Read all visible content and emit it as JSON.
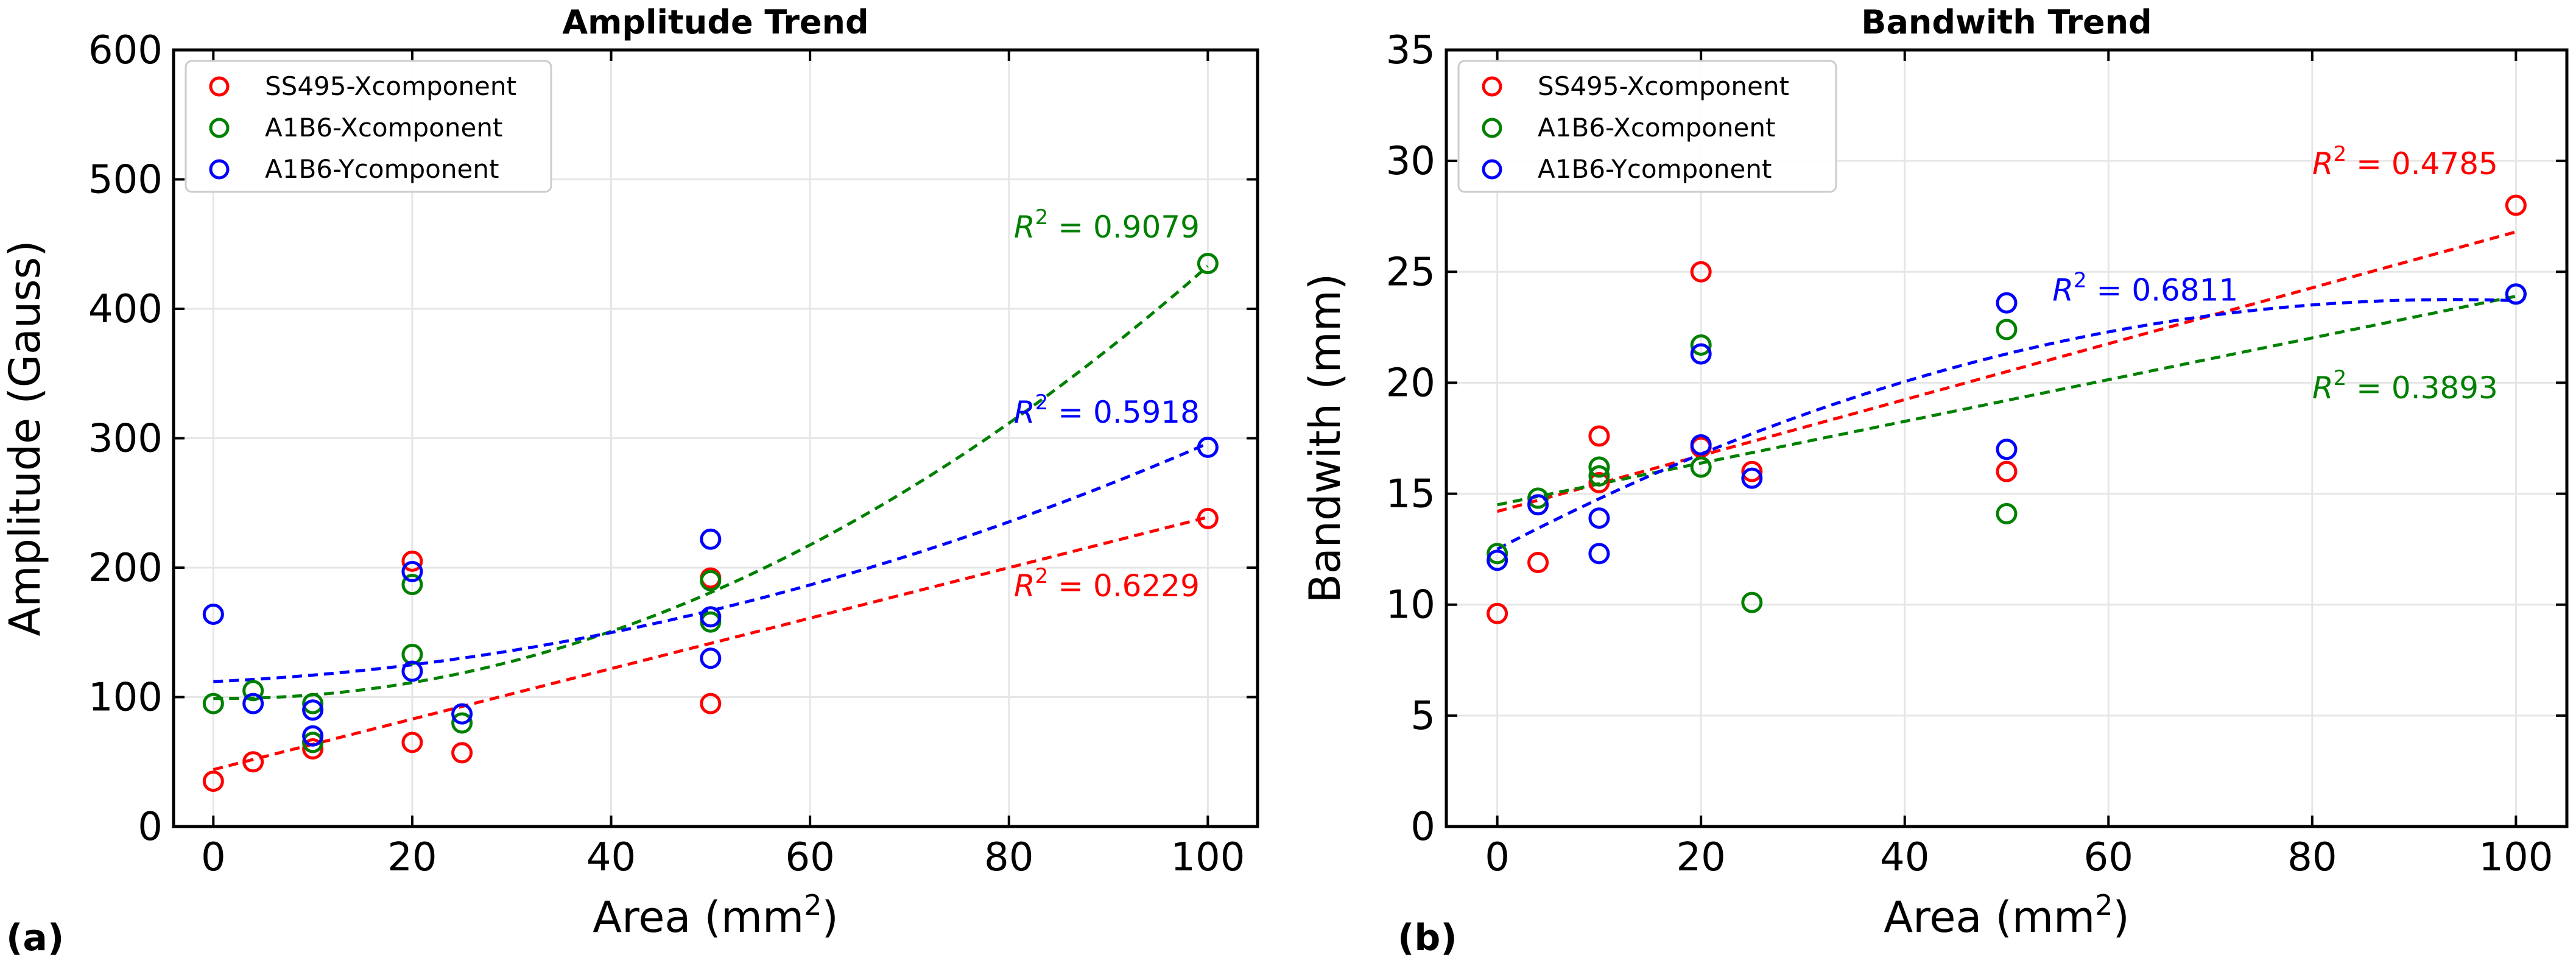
{
  "chart_data": [
    {
      "type": "scatter",
      "panel_label": "(a)",
      "title": "Amplitude Trend",
      "xlabel": "Area (mm",
      "xlabel_sup": "2",
      "xlabel_end": ")",
      "ylabel": "Amplitude (Gauss)",
      "xlim": [
        -4,
        105
      ],
      "ylim": [
        0,
        600
      ],
      "xticks": [
        0,
        20,
        40,
        60,
        80,
        100
      ],
      "yticks": [
        0,
        100,
        200,
        300,
        400,
        500,
        600
      ],
      "grid": true,
      "legend_position": "top-left",
      "series": [
        {
          "name": "SS495-Xcomponent",
          "color": "#ff0000",
          "points": [
            [
              0,
              35
            ],
            [
              4,
              50
            ],
            [
              10,
              60
            ],
            [
              10,
              65
            ],
            [
              20,
              205
            ],
            [
              20,
              65
            ],
            [
              25,
              57
            ],
            [
              50,
              192
            ],
            [
              50,
              95
            ],
            [
              100,
              238
            ]
          ],
          "fit": {
            "type": "linear",
            "coeffs": [
              44,
              1.95
            ]
          },
          "r2_base": "R",
          "r2_sup": "2",
          "r2_value": " = 0.6229",
          "r2_anchor": [
            80.5,
            178
          ]
        },
        {
          "name": "A1B6-Xcomponent",
          "color": "#008000",
          "points": [
            [
              0,
              95
            ],
            [
              4,
              105
            ],
            [
              10,
              95
            ],
            [
              10,
              65
            ],
            [
              20,
              187
            ],
            [
              20,
              133
            ],
            [
              25,
              80
            ],
            [
              50,
              190
            ],
            [
              50,
              158
            ],
            [
              100,
              435
            ]
          ],
          "fit": {
            "type": "poly2",
            "coeffs": [
              99,
              -0.07,
              0.0341
            ]
          },
          "r2_base": "R",
          "r2_sup": "2",
          "r2_value": " = 0.9079",
          "r2_anchor": [
            80.5,
            455
          ]
        },
        {
          "name": "A1B6-Ycomponent",
          "color": "#0000ff",
          "points": [
            [
              0,
              164
            ],
            [
              4,
              95
            ],
            [
              10,
              90
            ],
            [
              10,
              70
            ],
            [
              20,
              197
            ],
            [
              20,
              120
            ],
            [
              25,
              87
            ],
            [
              50,
              222
            ],
            [
              50,
              162
            ],
            [
              50,
              130
            ],
            [
              100,
              293
            ]
          ],
          "fit": {
            "type": "poly2",
            "coeffs": [
              112,
              0.35,
              0.0149
            ]
          },
          "r2_base": "R",
          "r2_sup": "2",
          "r2_value": " = 0.5918",
          "r2_anchor": [
            80.5,
            312
          ]
        }
      ]
    },
    {
      "type": "scatter",
      "panel_label": "(b)",
      "title": "Bandwith Trend",
      "xlabel": "Area (mm",
      "xlabel_sup": "2",
      "xlabel_end": ")",
      "ylabel": "Bandwith (mm)",
      "xlim": [
        -5,
        105
      ],
      "ylim": [
        0,
        35
      ],
      "xticks": [
        0,
        20,
        40,
        60,
        80,
        100
      ],
      "yticks": [
        0,
        5,
        10,
        15,
        20,
        25,
        30,
        35
      ],
      "grid": true,
      "legend_position": "top-left",
      "series": [
        {
          "name": "SS495-Xcomponent",
          "color": "#ff0000",
          "points": [
            [
              0,
              9.6
            ],
            [
              4,
              11.9
            ],
            [
              10,
              17.6
            ],
            [
              10,
              15.5
            ],
            [
              20,
              25.0
            ],
            [
              20,
              17.1
            ],
            [
              25,
              16.0
            ],
            [
              50,
              16.0
            ],
            [
              100,
              28.0
            ]
          ],
          "fit": {
            "type": "linear",
            "coeffs": [
              14.2,
              0.126
            ]
          },
          "r2_base": "R",
          "r2_sup": "2",
          "r2_value": " = 0.4785",
          "r2_anchor": [
            80,
            29.4
          ]
        },
        {
          "name": "A1B6-Xcomponent",
          "color": "#008000",
          "points": [
            [
              0,
              12.3
            ],
            [
              4,
              14.8
            ],
            [
              10,
              16.2
            ],
            [
              10,
              15.8
            ],
            [
              20,
              21.7
            ],
            [
              20,
              16.2
            ],
            [
              25,
              10.1
            ],
            [
              50,
              22.4
            ],
            [
              50,
              14.1
            ],
            [
              100,
              24.0
            ]
          ],
          "fit": {
            "type": "linear",
            "coeffs": [
              14.5,
              0.094
            ]
          },
          "r2_base": "R",
          "r2_sup": "2",
          "r2_value": " = 0.3893",
          "r2_anchor": [
            80,
            19.3
          ]
        },
        {
          "name": "A1B6-Ycomponent",
          "color": "#0000ff",
          "points": [
            [
              0,
              12.0
            ],
            [
              4,
              14.5
            ],
            [
              10,
              13.9
            ],
            [
              10,
              12.3
            ],
            [
              20,
              21.3
            ],
            [
              20,
              17.2
            ],
            [
              25,
              15.7
            ],
            [
              50,
              23.6
            ],
            [
              50,
              17.0
            ],
            [
              100,
              24.0
            ]
          ],
          "fit": {
            "type": "poly2",
            "coeffs": [
              12.5,
              0.24,
              -0.00128
            ]
          },
          "r2_base": "R",
          "r2_sup": "2",
          "r2_value": " = 0.6811",
          "r2_anchor": [
            54.5,
            23.7
          ]
        }
      ]
    }
  ]
}
